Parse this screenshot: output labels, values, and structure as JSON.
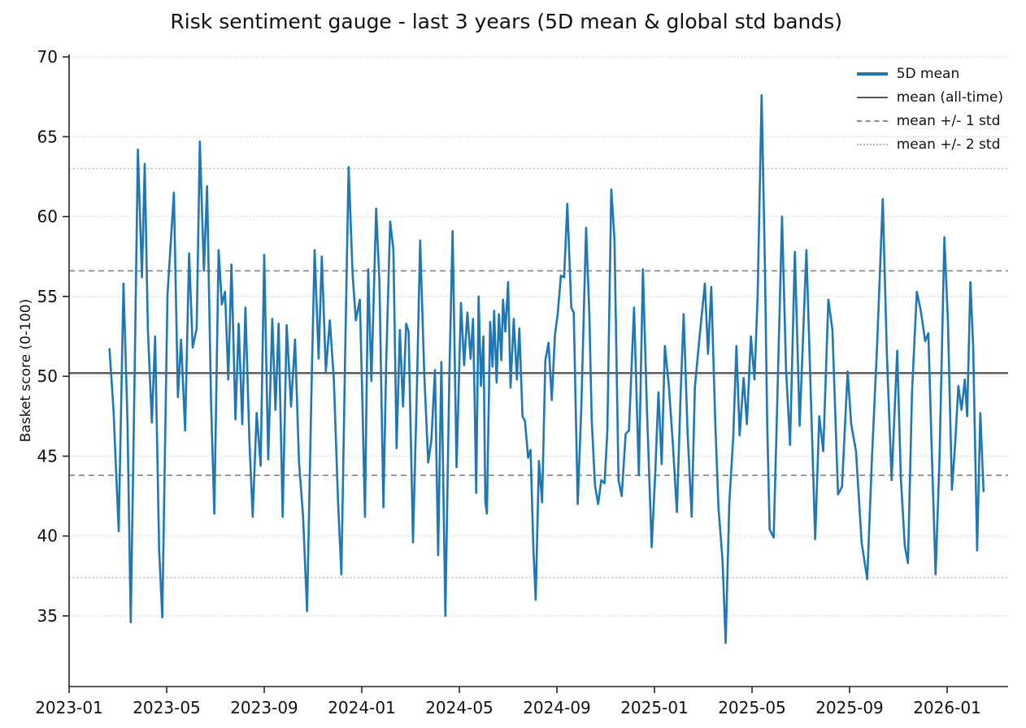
{
  "title": "Risk sentiment gauge - last 3 years (5D mean & global std bands)",
  "chart_data": {
    "type": "line",
    "title": "Risk sentiment gauge - last 3 years (5D mean & global std bands)",
    "xlabel": "",
    "ylabel": "Basket score (0-100)",
    "ylim": [
      30.6,
      70.2
    ],
    "y_ticks": [
      35,
      40,
      45,
      50,
      55,
      60,
      65,
      70
    ],
    "x_ticks": [
      "2023-01",
      "2023-05",
      "2023-09",
      "2024-01",
      "2024-05",
      "2024-09",
      "2025-01",
      "2025-05",
      "2025-09",
      "2026-01"
    ],
    "grid": "horizontal dotted at each y tick",
    "legend_position": "upper right, no frame",
    "legend_items": [
      {
        "label": "5D mean",
        "style": "solid-thick",
        "color": "#1f77b4"
      },
      {
        "label": "mean (all-time)",
        "style": "solid",
        "color": "#595959"
      },
      {
        "label": "mean +/- 1 std",
        "style": "dashed",
        "color": "#8c8c8c"
      },
      {
        "label": "mean +/- 2 std",
        "style": "dotted",
        "color": "#b5b5b5"
      }
    ],
    "reference_lines": {
      "mean": 50.2,
      "std": 6.4,
      "mean_plus_1std": 56.6,
      "mean_minus_1std": 43.8,
      "mean_plus_2std": 63.0,
      "mean_minus_2std": 37.4
    },
    "series": [
      {
        "name": "5D mean",
        "color": "#1f77b4",
        "dates": [
          "2023-02-21",
          "2023-02-26",
          "2023-03-02",
          "2023-03-08",
          "2023-03-13",
          "2023-03-17",
          "2023-03-22",
          "2023-03-26",
          "2023-03-31",
          "2023-04-04",
          "2023-04-08",
          "2023-04-13",
          "2023-04-17",
          "2023-04-22",
          "2023-04-26",
          "2023-05-02",
          "2023-05-10",
          "2023-05-15",
          "2023-05-19",
          "2023-05-24",
          "2023-05-29",
          "2023-06-03",
          "2023-06-08",
          "2023-06-12",
          "2023-06-17",
          "2023-06-21",
          "2023-06-26",
          "2023-06-30",
          "2023-07-05",
          "2023-07-09",
          "2023-07-13",
          "2023-07-17",
          "2023-07-21",
          "2023-07-26",
          "2023-07-30",
          "2023-08-04",
          "2023-08-08",
          "2023-08-13",
          "2023-08-17",
          "2023-08-22",
          "2023-08-27",
          "2023-09-01",
          "2023-09-06",
          "2023-09-11",
          "2023-09-15",
          "2023-09-19",
          "2023-09-24",
          "2023-09-29",
          "2023-10-04",
          "2023-10-09",
          "2023-10-14",
          "2023-10-19",
          "2023-10-24",
          "2023-10-30",
          "2023-11-03",
          "2023-11-08",
          "2023-11-12",
          "2023-11-17",
          "2023-11-22",
          "2023-11-27",
          "2023-12-02",
          "2023-12-06",
          "2023-12-11",
          "2023-12-15",
          "2023-12-20",
          "2023-12-24",
          "2023-12-29",
          "2024-01-02",
          "2024-01-05",
          "2024-01-09",
          "2024-01-13",
          "2024-01-19",
          "2024-01-23",
          "2024-01-28",
          "2024-02-01",
          "2024-02-06",
          "2024-02-10",
          "2024-02-14",
          "2024-02-18",
          "2024-02-22",
          "2024-02-26",
          "2024-02-29",
          "2024-03-04",
          "2024-03-09",
          "2024-03-13",
          "2024-03-18",
          "2024-03-23",
          "2024-03-27",
          "2024-04-01",
          "2024-04-05",
          "2024-04-09",
          "2024-04-14",
          "2024-04-19",
          "2024-04-23",
          "2024-04-28",
          "2024-05-03",
          "2024-05-07",
          "2024-05-11",
          "2024-05-15",
          "2024-05-18",
          "2024-05-20",
          "2024-05-22",
          "2024-05-25",
          "2024-05-28",
          "2024-05-31",
          "2024-06-03",
          "2024-06-05",
          "2024-06-09",
          "2024-06-12",
          "2024-06-14",
          "2024-06-17",
          "2024-06-20",
          "2024-06-23",
          "2024-06-25",
          "2024-06-28",
          "2024-07-01",
          "2024-07-04",
          "2024-07-08",
          "2024-07-12",
          "2024-07-15",
          "2024-07-19",
          "2024-07-22",
          "2024-07-26",
          "2024-07-29",
          "2024-08-02",
          "2024-08-05",
          "2024-08-09",
          "2024-08-13",
          "2024-08-17",
          "2024-08-21",
          "2024-08-25",
          "2024-08-29",
          "2024-09-02",
          "2024-09-06",
          "2024-09-10",
          "2024-09-14",
          "2024-09-19",
          "2024-09-22",
          "2024-09-27",
          "2024-10-01",
          "2024-10-07",
          "2024-10-11",
          "2024-10-14",
          "2024-10-18",
          "2024-10-22",
          "2024-10-26",
          "2024-10-30",
          "2024-11-03",
          "2024-11-08",
          "2024-11-12",
          "2024-11-17",
          "2024-11-21",
          "2024-11-26",
          "2024-11-30",
          "2024-12-06",
          "2024-12-12",
          "2024-12-17",
          "2024-12-22",
          "2024-12-28",
          "2025-01-02",
          "2025-01-06",
          "2025-01-10",
          "2025-01-14",
          "2025-01-19",
          "2025-01-24",
          "2025-01-29",
          "2025-02-03",
          "2025-02-07",
          "2025-02-12",
          "2025-02-17",
          "2025-02-21",
          "2025-02-26",
          "2025-03-03",
          "2025-03-07",
          "2025-03-11",
          "2025-03-16",
          "2025-03-20",
          "2025-03-25",
          "2025-03-29",
          "2025-04-03",
          "2025-04-08",
          "2025-04-12",
          "2025-04-16",
          "2025-04-21",
          "2025-04-25",
          "2025-04-30",
          "2025-05-04",
          "2025-05-08",
          "2025-05-13",
          "2025-05-17",
          "2025-05-20",
          "2025-05-23",
          "2025-05-28",
          "2025-06-02",
          "2025-06-08",
          "2025-06-13",
          "2025-06-18",
          "2025-06-24",
          "2025-06-30",
          "2025-07-08",
          "2025-07-14",
          "2025-07-19",
          "2025-07-24",
          "2025-07-29",
          "2025-08-05",
          "2025-08-10",
          "2025-08-17",
          "2025-08-22",
          "2025-08-29",
          "2025-09-03",
          "2025-09-09",
          "2025-09-16",
          "2025-09-23",
          "2025-09-29",
          "2025-10-05",
          "2025-10-12",
          "2025-10-17",
          "2025-10-23",
          "2025-10-30",
          "2025-11-04",
          "2025-11-09",
          "2025-11-13",
          "2025-11-18",
          "2025-11-24",
          "2025-11-29",
          "2025-12-04",
          "2025-12-08",
          "2025-12-12",
          "2025-12-17",
          "2025-12-22",
          "2025-12-28",
          "2026-01-02",
          "2026-01-07",
          "2026-01-11",
          "2026-01-15",
          "2026-01-19",
          "2026-01-23",
          "2026-01-26",
          "2026-01-30",
          "2026-02-03",
          "2026-02-08",
          "2026-02-12",
          "2026-02-16"
        ],
        "values": [
          51.7,
          47.9,
          40.3,
          55.8,
          47.2,
          34.6,
          50.5,
          64.2,
          56.2,
          63.3,
          52.9,
          47.1,
          52.5,
          39.2,
          34.9,
          55.1,
          61.5,
          48.7,
          52.3,
          46.6,
          57.7,
          51.8,
          53.0,
          64.7,
          56.6,
          61.9,
          48.4,
          41.4,
          57.9,
          54.5,
          55.3,
          49.8,
          57.0,
          47.3,
          53.3,
          47.0,
          54.3,
          45.9,
          41.2,
          47.7,
          44.4,
          57.6,
          44.8,
          53.6,
          47.9,
          53.3,
          41.2,
          53.2,
          48.1,
          52.3,
          44.6,
          41.3,
          35.3,
          50.3,
          57.9,
          51.1,
          57.5,
          50.3,
          53.5,
          49.8,
          41.9,
          37.6,
          52.4,
          63.1,
          56.4,
          53.5,
          54.8,
          47.9,
          41.2,
          56.7,
          49.7,
          60.5,
          55.9,
          41.8,
          50.8,
          59.7,
          57.9,
          45.5,
          52.9,
          48.1,
          53.3,
          52.8,
          39.6,
          49.5,
          58.5,
          50.2,
          44.6,
          46.0,
          50.4,
          38.8,
          50.9,
          35.0,
          50.0,
          59.1,
          44.3,
          54.6,
          50.7,
          54.0,
          51.1,
          53.6,
          48.9,
          42.7,
          55.0,
          49.4,
          52.5,
          42.1,
          41.4,
          53.4,
          50.6,
          54.1,
          49.6,
          53.9,
          51.0,
          54.8,
          52.8,
          55.9,
          49.3,
          53.6,
          49.8,
          53.0,
          47.5,
          47.2,
          44.9,
          45.4,
          39.3,
          36.0,
          44.7,
          42.1,
          51.0,
          52.1,
          48.5,
          52.6,
          53.9,
          56.3,
          56.2,
          60.8,
          54.3,
          54.0,
          42.0,
          48.0,
          59.3,
          53.9,
          47.3,
          43.2,
          42.0,
          43.5,
          43.3,
          46.5,
          61.7,
          58.6,
          43.5,
          42.5,
          46.4,
          46.6,
          54.3,
          43.8,
          56.7,
          48.0,
          39.3,
          44.0,
          49.0,
          44.5,
          51.9,
          49.4,
          45.7,
          41.5,
          48.6,
          53.9,
          46.4,
          41.2,
          49.3,
          52.0,
          55.8,
          51.4,
          55.6,
          47.1,
          41.8,
          38.5,
          33.3,
          42.0,
          46.2,
          51.9,
          46.3,
          49.9,
          47.0,
          52.5,
          49.8,
          55.0,
          67.6,
          57.1,
          47.0,
          40.4,
          39.9,
          48.3,
          60.0,
          50.5,
          45.7,
          57.8,
          46.9,
          57.9,
          48.0,
          39.8,
          47.5,
          45.3,
          54.8,
          52.9,
          42.6,
          43.1,
          50.3,
          47.0,
          45.3,
          39.6,
          37.3,
          45.0,
          52.0,
          61.1,
          51.5,
          43.5,
          51.6,
          43.7,
          39.4,
          38.3,
          49.0,
          55.3,
          54.1,
          52.2,
          52.7,
          45.8,
          37.6,
          45.0,
          58.7,
          53.4,
          42.9,
          45.8,
          49.4,
          47.9,
          49.8,
          47.5,
          55.9,
          51.9,
          39.1,
          47.7,
          42.8
        ]
      }
    ],
    "colors": {
      "line": "#1f77b4",
      "mean_line": "#595959",
      "std1_line": "#8c8c8c",
      "std2_line": "#b5b5b5",
      "grid": "#cccccc",
      "spine": "#262626",
      "text": "#111111"
    }
  }
}
